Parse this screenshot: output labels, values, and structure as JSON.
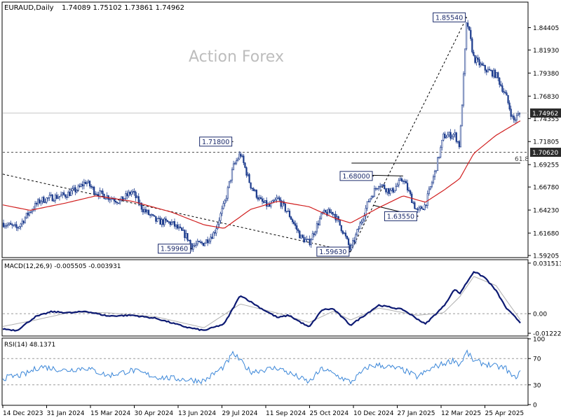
{
  "header": {
    "symbol": "EURAUD,Daily",
    "ohlc": "1.74089 1.75102 1.73861 1.74962"
  },
  "watermark": "Action Forex",
  "colors": {
    "background": "#ffffff",
    "axis": "#000000",
    "candle": "#1b3a8c",
    "ma": "#d11f1f",
    "macd": "#0d1a73",
    "macd_signal": "#b0b0b0",
    "rsi": "#3a86d8",
    "level_line": "#555555",
    "watermark": "#bdbdbd",
    "current_price_line": "#c8c8c8"
  },
  "price_panel": {
    "y_ticks": [
      "1.84405",
      "1.81930",
      "1.79380",
      "1.76830",
      "1.74355",
      "1.71805",
      "1.69255",
      "1.66780",
      "1.64230",
      "1.61680",
      "1.59205"
    ],
    "ylim": [
      1.5905,
      1.8715
    ],
    "current_price": "1.74962",
    "support_level": "1.70620",
    "fib_label": "61.8",
    "fib_level": 1.6942,
    "pivots": [
      {
        "label": "1.85540",
        "date": "2025-03-17",
        "price": 1.8554
      },
      {
        "label": "1.71800",
        "date": "2024-07-29",
        "price": 1.718
      },
      {
        "label": "1.68000",
        "date": "2024-12-15",
        "price": 1.68
      },
      {
        "label": "1.63550",
        "date": "2025-01-28",
        "price": 1.6355
      },
      {
        "label": "1.59960",
        "date": "2024-06-18",
        "price": 1.5996
      },
      {
        "label": "1.59630",
        "date": "2024-11-22",
        "price": 1.5963
      }
    ],
    "trendlines": [
      {
        "style": "dotted",
        "from": {
          "date": "2023-12-14",
          "price": 1.682
        },
        "to": {
          "date": "2024-11-22",
          "price": 1.5963
        }
      },
      {
        "style": "dotted",
        "from": {
          "date": "2024-11-22",
          "price": 1.5963
        },
        "to": {
          "date": "2025-03-17",
          "price": 1.8554
        }
      },
      {
        "style": "solid",
        "from": {
          "date": "2024-11-23",
          "price": 1.6942
        },
        "to": {
          "date": "2025-05-09",
          "price": 1.6942
        }
      },
      {
        "style": "solid",
        "from": {
          "date": "2024-11-25",
          "price": 1.6812
        },
        "to": {
          "date": "2025-01-13",
          "price": 1.68
        }
      },
      {
        "style": "solid",
        "from": {
          "date": "2024-12-15",
          "price": 1.6475
        },
        "to": {
          "date": "2025-01-28",
          "price": 1.6355
        }
      }
    ]
  },
  "macd_panel": {
    "label": "MACD(12,26,9) -0.005505 -0.003931",
    "y_ticks": [
      "0.031513",
      "0.00",
      "-0.012223"
    ],
    "ylim": [
      -0.0135,
      0.0332
    ]
  },
  "rsi_panel": {
    "label": "RSI(14) 48.1371",
    "y_ticks": [
      "100",
      "70",
      "30",
      "0"
    ],
    "ylim": [
      0,
      100
    ]
  },
  "x_axis": {
    "labels": [
      "14 Dec 2023",
      "31 Jan 2024",
      "15 Mar 2024",
      "30 Apr 2024",
      "13 Jun 2024",
      "29 Jul 2024",
      "11 Sep 2024",
      "25 Oct 2024",
      "10 Dec 2024",
      "27 Jan 2025",
      "12 Mar 2025",
      "25 Apr 2025"
    ]
  },
  "chart_data": {
    "type": "candlestick",
    "symbol": "EURAUD",
    "timeframe": "Daily",
    "x_range": [
      "2023-12-14",
      "2025-05-09"
    ],
    "price_series": {
      "name": "EURAUD close (approx.)",
      "points": [
        [
          "2023-12-14",
          1.628
        ],
        [
          "2023-12-28",
          1.622
        ],
        [
          "2024-01-10",
          1.641
        ],
        [
          "2024-01-20",
          1.653
        ],
        [
          "2024-01-31",
          1.656
        ],
        [
          "2024-02-14",
          1.659
        ],
        [
          "2024-02-27",
          1.666
        ],
        [
          "2024-03-05",
          1.674
        ],
        [
          "2024-03-15",
          1.662
        ],
        [
          "2024-03-27",
          1.657
        ],
        [
          "2024-04-08",
          1.652
        ],
        [
          "2024-04-20",
          1.663
        ],
        [
          "2024-04-30",
          1.644
        ],
        [
          "2024-05-14",
          1.63
        ],
        [
          "2024-05-29",
          1.628
        ],
        [
          "2024-06-13",
          1.613
        ],
        [
          "2024-06-18",
          1.6025
        ],
        [
          "2024-06-30",
          1.606
        ],
        [
          "2024-07-10",
          1.617
        ],
        [
          "2024-07-20",
          1.648
        ],
        [
          "2024-07-29",
          1.69
        ],
        [
          "2024-08-05",
          1.705
        ],
        [
          "2024-08-15",
          1.67
        ],
        [
          "2024-08-25",
          1.652
        ],
        [
          "2024-09-03",
          1.646
        ],
        [
          "2024-09-11",
          1.655
        ],
        [
          "2024-09-22",
          1.638
        ],
        [
          "2024-10-04",
          1.612
        ],
        [
          "2024-10-12",
          1.606
        ],
        [
          "2024-10-25",
          1.638
        ],
        [
          "2024-11-05",
          1.64
        ],
        [
          "2024-11-15",
          1.618
        ],
        [
          "2024-11-22",
          1.598
        ],
        [
          "2024-12-01",
          1.625
        ],
        [
          "2024-12-10",
          1.653
        ],
        [
          "2024-12-20",
          1.672
        ],
        [
          "2025-01-01",
          1.662
        ],
        [
          "2025-01-13",
          1.677
        ],
        [
          "2025-01-27",
          1.64
        ],
        [
          "2025-02-04",
          1.648
        ],
        [
          "2025-02-14",
          1.686
        ],
        [
          "2025-02-22",
          1.724
        ],
        [
          "2025-03-05",
          1.726
        ],
        [
          "2025-03-10",
          1.713
        ],
        [
          "2025-03-17",
          1.853
        ],
        [
          "2025-03-24",
          1.81
        ],
        [
          "2025-04-04",
          1.798
        ],
        [
          "2025-04-15",
          1.792
        ],
        [
          "2025-04-25",
          1.768
        ],
        [
          "2025-05-02",
          1.741
        ],
        [
          "2025-05-09",
          1.7496
        ]
      ]
    },
    "ma_series": {
      "points": [
        [
          "2023-12-14",
          1.648
        ],
        [
          "2024-01-10",
          1.642
        ],
        [
          "2024-02-14",
          1.65
        ],
        [
          "2024-03-15",
          1.658
        ],
        [
          "2024-04-20",
          1.652
        ],
        [
          "2024-05-29",
          1.64
        ],
        [
          "2024-06-30",
          1.626
        ],
        [
          "2024-07-20",
          1.622
        ],
        [
          "2024-08-15",
          1.643
        ],
        [
          "2024-09-11",
          1.652
        ],
        [
          "2024-10-12",
          1.646
        ],
        [
          "2024-11-05",
          1.634
        ],
        [
          "2024-11-22",
          1.628
        ],
        [
          "2024-12-20",
          1.645
        ],
        [
          "2025-01-13",
          1.658
        ],
        [
          "2025-02-04",
          1.651
        ],
        [
          "2025-02-22",
          1.664
        ],
        [
          "2025-03-10",
          1.677
        ],
        [
          "2025-03-24",
          1.705
        ],
        [
          "2025-04-15",
          1.725
        ],
        [
          "2025-05-09",
          1.741
        ]
      ]
    },
    "macd_series": {
      "points": [
        [
          "2023-12-14",
          -0.0095
        ],
        [
          "2023-12-28",
          -0.0105
        ],
        [
          "2024-01-15",
          -0.002
        ],
        [
          "2024-01-31",
          0.0012
        ],
        [
          "2024-02-20",
          0.0005
        ],
        [
          "2024-03-05",
          0.0015
        ],
        [
          "2024-03-27",
          -0.0015
        ],
        [
          "2024-04-20",
          -0.001
        ],
        [
          "2024-05-14",
          -0.003
        ],
        [
          "2024-06-13",
          -0.0085
        ],
        [
          "2024-06-30",
          -0.0105
        ],
        [
          "2024-07-20",
          -0.0065
        ],
        [
          "2024-08-05",
          0.0115
        ],
        [
          "2024-08-25",
          0.0035
        ],
        [
          "2024-09-11",
          -0.0025
        ],
        [
          "2024-09-22",
          -0.001
        ],
        [
          "2024-10-12",
          -0.0085
        ],
        [
          "2024-10-25",
          0.0025
        ],
        [
          "2024-11-05",
          0.003
        ],
        [
          "2024-11-22",
          -0.0072
        ],
        [
          "2024-12-20",
          0.0053
        ],
        [
          "2025-01-13",
          0.0025
        ],
        [
          "2025-02-04",
          -0.0065
        ],
        [
          "2025-02-22",
          0.0045
        ],
        [
          "2025-03-05",
          0.0152
        ],
        [
          "2025-03-10",
          0.0125
        ],
        [
          "2025-03-24",
          0.0263
        ],
        [
          "2025-04-04",
          0.0225
        ],
        [
          "2025-04-15",
          0.0143
        ],
        [
          "2025-04-25",
          0.0035
        ],
        [
          "2025-05-09",
          -0.0055
        ]
      ]
    },
    "macd_signal_series": {
      "points": [
        [
          "2023-12-14",
          -0.008
        ],
        [
          "2024-01-15",
          -0.004
        ],
        [
          "2024-02-20",
          0.001
        ],
        [
          "2024-03-27",
          0.0005
        ],
        [
          "2024-05-14",
          -0.002
        ],
        [
          "2024-06-30",
          -0.0088
        ],
        [
          "2024-08-05",
          0.006
        ],
        [
          "2024-09-11",
          0.0003
        ],
        [
          "2024-10-12",
          -0.0055
        ],
        [
          "2024-11-05",
          0.0015
        ],
        [
          "2024-11-22",
          -0.004
        ],
        [
          "2024-12-20",
          0.0035
        ],
        [
          "2025-01-27",
          -0.001
        ],
        [
          "2025-02-22",
          0.0005
        ],
        [
          "2025-03-10",
          0.0105
        ],
        [
          "2025-03-24",
          0.0232
        ],
        [
          "2025-04-15",
          0.0175
        ],
        [
          "2025-04-25",
          0.0085
        ],
        [
          "2025-05-09",
          -0.0039
        ]
      ]
    },
    "rsi_series": {
      "points": [
        [
          "2023-12-14",
          40
        ],
        [
          "2024-01-05",
          46
        ],
        [
          "2024-01-20",
          58
        ],
        [
          "2024-02-14",
          52
        ],
        [
          "2024-03-05",
          56
        ],
        [
          "2024-03-27",
          44
        ],
        [
          "2024-04-20",
          52
        ],
        [
          "2024-05-14",
          42
        ],
        [
          "2024-06-13",
          38
        ],
        [
          "2024-06-30",
          36
        ],
        [
          "2024-07-20",
          58
        ],
        [
          "2024-07-29",
          78
        ],
        [
          "2024-08-15",
          50
        ],
        [
          "2024-09-11",
          56
        ],
        [
          "2024-10-12",
          34
        ],
        [
          "2024-10-25",
          55
        ],
        [
          "2024-11-22",
          34
        ],
        [
          "2024-12-10",
          58
        ],
        [
          "2024-12-20",
          60
        ],
        [
          "2025-01-13",
          53
        ],
        [
          "2025-01-27",
          42
        ],
        [
          "2025-02-14",
          58
        ],
        [
          "2025-03-05",
          68
        ],
        [
          "2025-03-10",
          60
        ],
        [
          "2025-03-17",
          80
        ],
        [
          "2025-03-24",
          66
        ],
        [
          "2025-04-04",
          62
        ],
        [
          "2025-04-15",
          58
        ],
        [
          "2025-04-25",
          55
        ],
        [
          "2025-05-02",
          40
        ],
        [
          "2025-05-09",
          48.14
        ]
      ]
    }
  }
}
